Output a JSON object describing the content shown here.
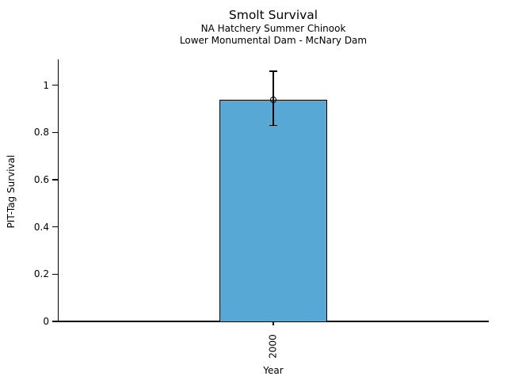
{
  "chart_data": {
    "type": "bar",
    "title": "Smolt Survival",
    "subtitle_line1": "NA Hatchery Summer Chinook",
    "subtitle_line2": "Lower Monumental Dam - McNary Dam",
    "xlabel": "Year",
    "ylabel": "PIT-Tag Survival",
    "categories": [
      "2000"
    ],
    "values": [
      0.94
    ],
    "error_low": [
      0.83
    ],
    "error_high": [
      1.06
    ],
    "yticks": [
      0,
      0.2,
      0.4,
      0.6,
      0.8,
      1
    ],
    "ytick_labels": [
      "0",
      "0.2",
      "0.4",
      "0.6",
      "0.8",
      "1"
    ],
    "ylim": [
      0,
      1.11
    ],
    "grid": false,
    "legend": "none",
    "bar_color": "#57A8D5",
    "edge_color": "#000000",
    "text_color": "#000000"
  }
}
